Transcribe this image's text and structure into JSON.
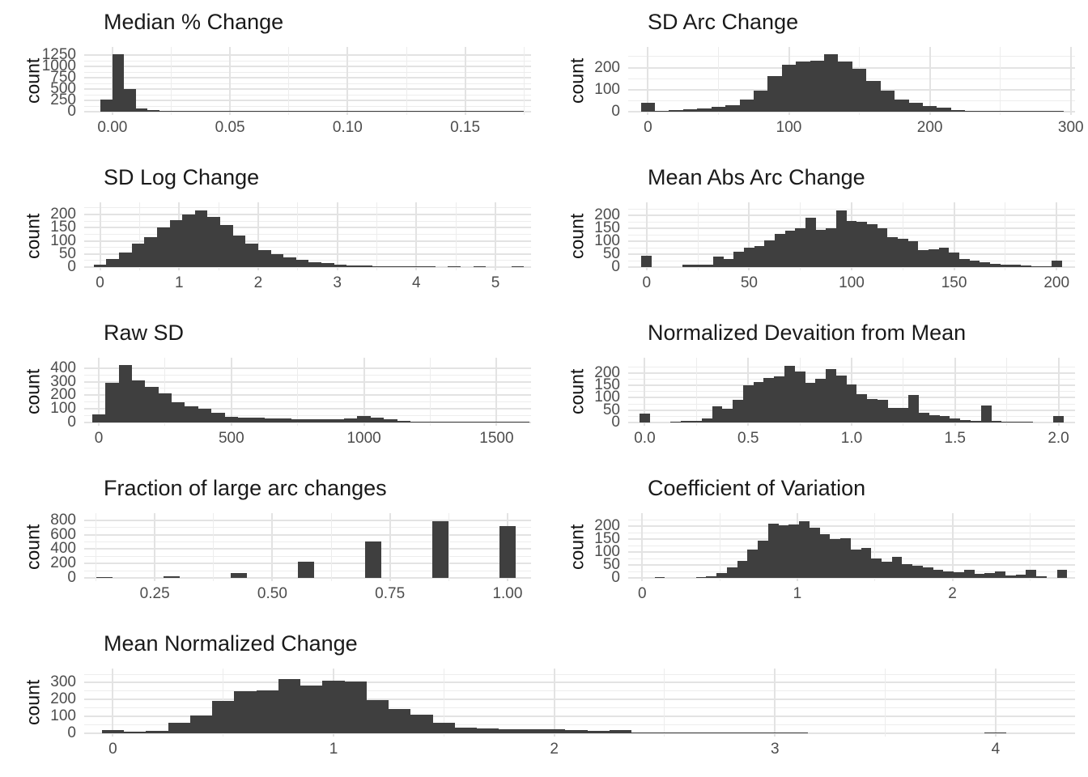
{
  "figure": {
    "y_axis_label": "count",
    "bar_color": "#3f3f3f",
    "gridline_major_color": "#e3e3e3",
    "gridline_minor_color": "#ededed",
    "tick_text_color": "#4d4d4d",
    "title_text_color": "#1a1a1a",
    "background": "#ffffff",
    "grid": "on",
    "legend": "none"
  },
  "chart_data": [
    {
      "type": "bar",
      "subtype": "histogram",
      "span": 1,
      "title": "Median % Change",
      "xlabel": "",
      "ylabel": "count",
      "bin_start": -0.005,
      "bin_width": 0.005,
      "counts": [
        270,
        1270,
        500,
        70,
        40,
        22,
        14,
        10,
        7,
        5,
        8,
        4,
        3,
        2,
        2,
        2,
        1,
        1,
        1,
        1,
        1,
        1,
        1,
        1,
        2,
        1,
        1,
        2,
        1,
        1,
        1,
        1,
        1,
        1,
        1,
        1
      ],
      "xlim": [
        -0.012,
        0.178
      ],
      "ylim": [
        0,
        1330
      ],
      "x_tick_values": [
        0,
        0.05,
        0.1,
        0.15
      ],
      "x_tick_labels": [
        "0.00",
        "0.05",
        "0.10",
        "0.15"
      ],
      "y_tick_values": [
        0,
        250,
        500,
        750,
        1000,
        1250
      ],
      "y_tick_labels": [
        "0",
        "250",
        "500",
        "750",
        "1000",
        "1250"
      ]
    },
    {
      "type": "bar",
      "subtype": "histogram",
      "span": 1,
      "title": "SD Arc Change",
      "xlabel": "",
      "ylabel": "count",
      "bin_start": -5,
      "bin_width": 10,
      "counts": [
        40,
        5,
        8,
        12,
        15,
        22,
        28,
        55,
        95,
        160,
        215,
        228,
        232,
        260,
        228,
        196,
        140,
        95,
        55,
        40,
        25,
        18,
        6,
        4,
        3,
        2,
        1,
        1,
        1,
        4
      ],
      "xlim": [
        -14,
        303
      ],
      "ylim": [
        0,
        272
      ],
      "x_tick_values": [
        0,
        100,
        200,
        300
      ],
      "x_tick_labels": [
        "0",
        "100",
        "200",
        "300"
      ],
      "y_tick_values": [
        0,
        100,
        200
      ],
      "y_tick_labels": [
        "0",
        "100",
        "200"
      ]
    },
    {
      "type": "bar",
      "subtype": "histogram",
      "span": 1,
      "title": "SD Log Change",
      "xlabel": "",
      "ylabel": "count",
      "bin_start": -0.08,
      "bin_width": 0.16,
      "counts": [
        10,
        30,
        55,
        90,
        115,
        150,
        180,
        200,
        215,
        190,
        160,
        120,
        90,
        65,
        50,
        38,
        28,
        20,
        14,
        10,
        7,
        5,
        3,
        2,
        2,
        1,
        1,
        0,
        1,
        0,
        1,
        0,
        0,
        1
      ],
      "xlim": [
        -0.2,
        5.45
      ],
      "ylim": [
        0,
        228
      ],
      "x_tick_values": [
        0,
        1,
        2,
        3,
        4,
        5
      ],
      "x_tick_labels": [
        "0",
        "1",
        "2",
        "3",
        "4",
        "5"
      ],
      "y_tick_values": [
        0,
        50,
        100,
        150,
        200
      ],
      "y_tick_labels": [
        "0",
        "50",
        "100",
        "150",
        "200"
      ]
    },
    {
      "type": "bar",
      "subtype": "histogram",
      "span": 1,
      "title": "Mean Abs Arc Change",
      "xlabel": "",
      "ylabel": "count",
      "bin_start": -2.5,
      "bin_width": 5,
      "counts": [
        45,
        0,
        0,
        0,
        8,
        10,
        10,
        40,
        30,
        60,
        75,
        80,
        105,
        130,
        140,
        150,
        190,
        145,
        150,
        220,
        180,
        175,
        165,
        150,
        115,
        110,
        100,
        65,
        70,
        75,
        55,
        30,
        25,
        20,
        12,
        10,
        8,
        5,
        3,
        2,
        25
      ],
      "xlim": [
        -9,
        209
      ],
      "ylim": [
        0,
        232
      ],
      "x_tick_values": [
        0,
        50,
        100,
        150,
        200
      ],
      "x_tick_labels": [
        "0",
        "50",
        "100",
        "150",
        "200"
      ],
      "y_tick_values": [
        0,
        50,
        100,
        150,
        200
      ],
      "y_tick_labels": [
        "0",
        "50",
        "100",
        "150",
        "200"
      ]
    },
    {
      "type": "bar",
      "subtype": "histogram",
      "span": 1,
      "title": "Raw SD",
      "xlabel": "",
      "ylabel": "count",
      "bin_start": -25,
      "bin_width": 50,
      "counts": [
        60,
        290,
        420,
        310,
        260,
        215,
        150,
        120,
        100,
        70,
        42,
        38,
        34,
        30,
        28,
        25,
        22,
        25,
        22,
        28,
        45,
        35,
        25,
        12,
        6,
        4,
        3,
        3,
        2,
        1,
        1,
        1,
        2
      ],
      "xlim": [
        -55,
        1630
      ],
      "ylim": [
        0,
        440
      ],
      "x_tick_values": [
        0,
        500,
        1000,
        1500
      ],
      "x_tick_labels": [
        "0",
        "500",
        "1000",
        "1500"
      ],
      "y_tick_values": [
        0,
        100,
        200,
        300,
        400
      ],
      "y_tick_labels": [
        "0",
        "100",
        "200",
        "300",
        "400"
      ]
    },
    {
      "type": "bar",
      "subtype": "histogram",
      "span": 1,
      "title": "Normalized Devaition from Mean",
      "xlabel": "",
      "ylabel": "count",
      "bin_start": -0.025,
      "bin_width": 0.05,
      "counts": [
        35,
        0,
        0,
        2,
        5,
        8,
        15,
        65,
        55,
        90,
        150,
        165,
        180,
        185,
        230,
        205,
        160,
        175,
        215,
        190,
        155,
        115,
        95,
        90,
        60,
        60,
        110,
        40,
        30,
        25,
        15,
        10,
        8,
        70,
        5,
        2,
        1,
        1,
        0,
        0,
        25
      ],
      "xlim": [
        -0.08,
        2.08
      ],
      "ylim": [
        0,
        242
      ],
      "x_tick_values": [
        0,
        0.5,
        1.0,
        1.5,
        2.0
      ],
      "x_tick_labels": [
        "0.0",
        "0.5",
        "1.0",
        "1.5",
        "2.0"
      ],
      "y_tick_values": [
        0,
        50,
        100,
        150,
        200
      ],
      "y_tick_labels": [
        "0",
        "50",
        "100",
        "150",
        "200"
      ]
    },
    {
      "type": "bar",
      "subtype": "discrete",
      "span": 1,
      "title": "Fraction of large arc changes",
      "xlabel": "",
      "ylabel": "count",
      "x": [
        0.143,
        0.286,
        0.429,
        0.571,
        0.714,
        0.857,
        1.0
      ],
      "values": [
        10,
        25,
        70,
        225,
        510,
        790,
        720
      ],
      "bar_width": 0.034,
      "xlim": [
        0.1,
        1.05
      ],
      "ylim": [
        0,
        830
      ],
      "x_tick_values": [
        0.25,
        0.5,
        0.75,
        1.0
      ],
      "x_tick_labels": [
        "0.25",
        "0.50",
        "0.75",
        "1.00"
      ],
      "y_tick_values": [
        0,
        200,
        400,
        600,
        800
      ],
      "y_tick_labels": [
        "0",
        "200",
        "400",
        "600",
        "800"
      ]
    },
    {
      "type": "bar",
      "subtype": "histogram",
      "span": 1,
      "title": "Coefficient of Variation",
      "xlabel": "",
      "ylabel": "count",
      "bin_start": 0.08,
      "bin_width": 0.0665,
      "counts": [
        3,
        0,
        0,
        0,
        4,
        6,
        20,
        40,
        65,
        110,
        145,
        210,
        205,
        208,
        220,
        195,
        170,
        152,
        155,
        110,
        115,
        75,
        62,
        80,
        52,
        48,
        40,
        32,
        25,
        22,
        30,
        15,
        20,
        25,
        8,
        12,
        30,
        5,
        0,
        30
      ],
      "xlim": [
        -0.09,
        2.79
      ],
      "ylim": [
        0,
        232
      ],
      "x_tick_values": [
        0,
        1,
        2
      ],
      "x_tick_labels": [
        "0",
        "1",
        "2"
      ],
      "y_tick_values": [
        0,
        50,
        100,
        150,
        200
      ],
      "y_tick_labels": [
        "0",
        "50",
        "100",
        "150",
        "200"
      ]
    },
    {
      "type": "bar",
      "subtype": "histogram",
      "span": 2,
      "title": "Mean Normalized Change",
      "xlabel": "",
      "ylabel": "count",
      "bin_start": -0.05,
      "bin_width": 0.1,
      "counts": [
        20,
        10,
        12,
        60,
        105,
        190,
        250,
        255,
        320,
        285,
        310,
        305,
        195,
        145,
        110,
        60,
        35,
        28,
        22,
        25,
        25,
        18,
        12,
        18,
        5,
        4,
        3,
        2,
        1,
        1,
        5,
        4,
        0,
        0,
        0,
        0,
        0,
        0,
        0,
        0,
        3
      ],
      "xlim": [
        -0.13,
        4.36
      ],
      "ylim": [
        0,
        355
      ],
      "x_tick_values": [
        0,
        1,
        2,
        3,
        4
      ],
      "x_tick_labels": [
        "0",
        "1",
        "2",
        "3",
        "4"
      ],
      "y_tick_values": [
        0,
        100,
        200,
        300
      ],
      "y_tick_labels": [
        "0",
        "100",
        "200",
        "300"
      ]
    }
  ]
}
